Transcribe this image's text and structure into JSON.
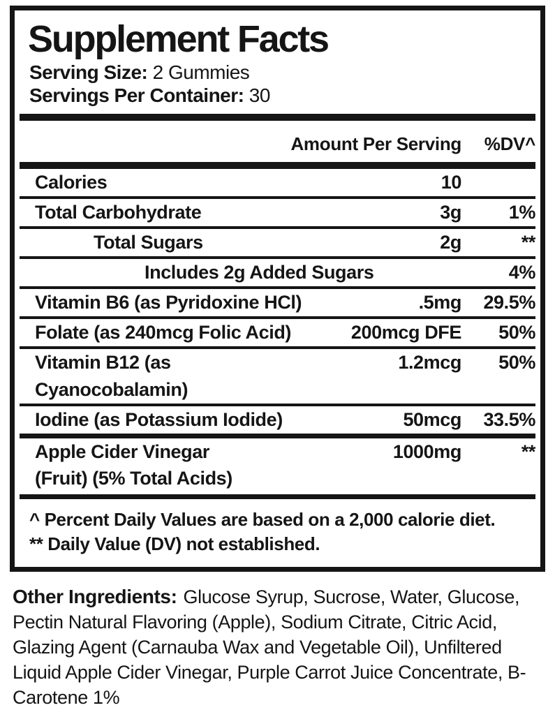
{
  "colors": {
    "background": "#ffffff",
    "ink": "#151515"
  },
  "label": {
    "title": "Supplement Facts",
    "serving_size_label": "Serving Size:",
    "serving_size_value": "2 Gummies",
    "servings_per_container_label": "Servings Per Container:",
    "servings_per_container_value": "30",
    "columns": {
      "amount": "Amount Per Serving",
      "dv": "%DV^"
    },
    "rows": [
      {
        "name": "Calories",
        "amount": "10",
        "dv": ""
      },
      {
        "name": "Total Carbohydrate",
        "amount": "3g",
        "dv": "1%"
      },
      {
        "name": "Total Sugars",
        "amount": "2g",
        "dv": "**"
      },
      {
        "name": "Includes 2g Added Sugars",
        "amount": "",
        "dv": "4%"
      },
      {
        "name": "Vitamin B6 (as Pyridoxine HCl)",
        "amount": ".5mg",
        "dv": "29.5%"
      },
      {
        "name": "Folate (as 240mcg Folic Acid)",
        "amount": "200mcg DFE",
        "dv": "50%"
      },
      {
        "name": "Vitamin B12 (as Cyanocobalamin)",
        "amount": "1.2mcg",
        "dv": "50%"
      },
      {
        "name": "Iodine (as Potassium Iodide)",
        "amount": "50mcg",
        "dv": "33.5%"
      },
      {
        "name": "Apple Cider Vinegar",
        "name_line2": "(Fruit) (5% Total Acids)",
        "amount": "1000mg",
        "dv": "**"
      }
    ],
    "footnotes": [
      "^ Percent Daily Values are based on a 2,000 calorie diet.",
      "** Daily Value (DV) not established."
    ]
  },
  "other_ingredients": {
    "label": "Other Ingredients:",
    "text": "Glucose Syrup, Sucrose, Water, Glucose, Pectin Natural Flavoring (Apple), Sodium Citrate, Citric Acid, Glazing Agent (Carnauba Wax and Vegetable Oil), Unfiltered Liquid Apple Cider Vinegar, Purple Carrot Juice Concentrate, B-Carotene 1%"
  }
}
